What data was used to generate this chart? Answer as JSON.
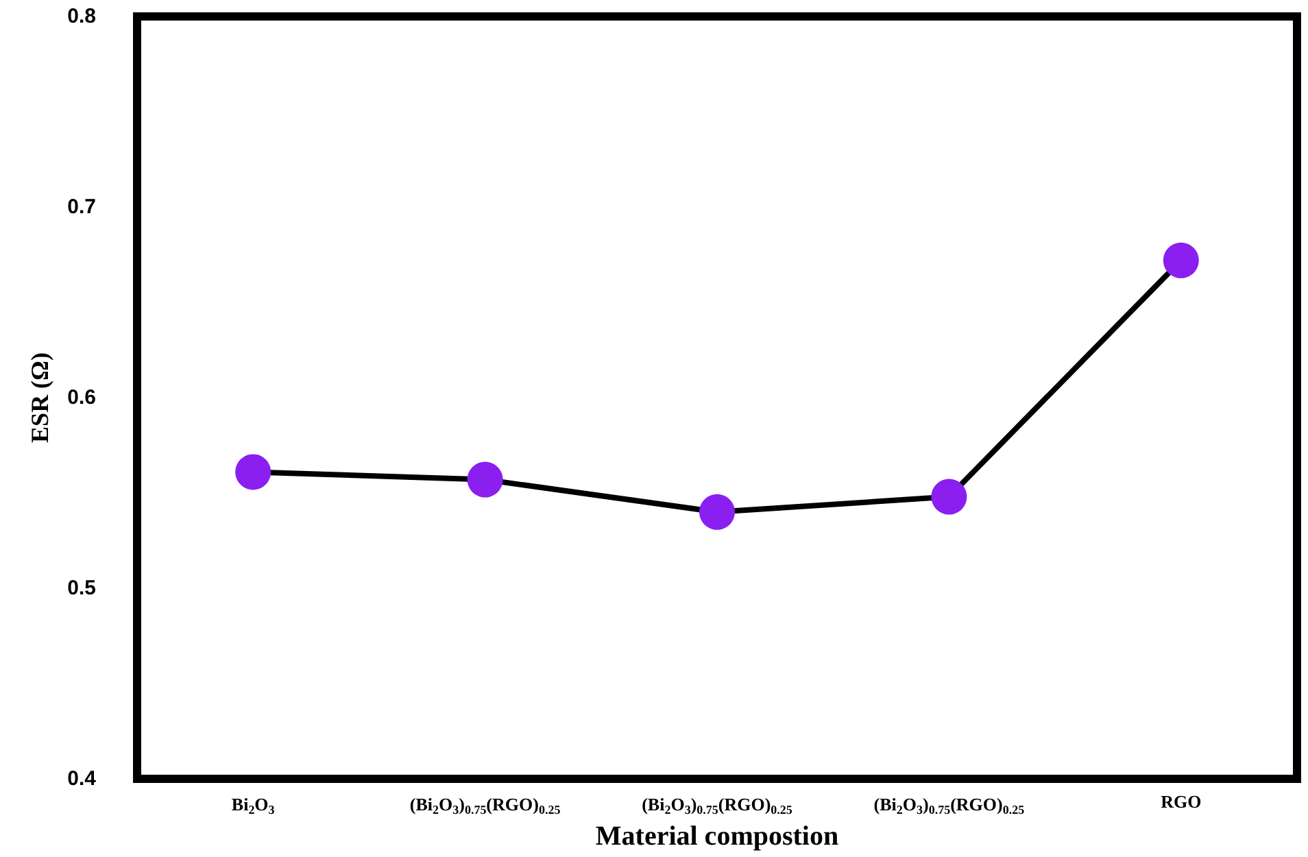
{
  "chart_data": {
    "type": "line",
    "xlabel": "Material compostion",
    "ylabel": "ESR (Ω)",
    "categories": [
      "Bi$_{2}$O$_{3}$",
      "(Bi$_{2}$O$_{3}$)$_{0.75}$(RGO)$_{0.25}$",
      "(Bi$_{2}$O$_{3}$)$_{0.75}$(RGO)$_{0.25}$",
      "(Bi$_{2}$O$_{3}$)$_{0.75}$(RGO)$_{0.25}$",
      "RGO"
    ],
    "series": [
      {
        "color": "#8a1ff0",
        "values": [
          0.561,
          0.557,
          0.54,
          0.548,
          0.672
        ]
      }
    ],
    "ylim": [
      0.4,
      0.8
    ],
    "yticks": [
      0.4,
      0.5,
      0.6,
      0.7,
      0.8
    ],
    "grid": false,
    "marker": "circle",
    "line_style": "solid"
  }
}
